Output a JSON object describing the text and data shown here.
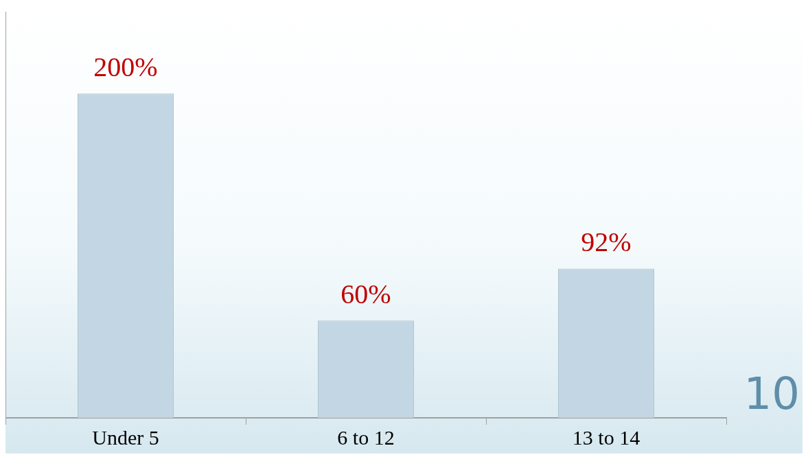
{
  "chart_data": {
    "type": "bar",
    "categories": [
      "Under 5",
      "6 to 12",
      "13 to 14"
    ],
    "values": [
      200,
      60,
      92
    ],
    "value_labels": [
      "200%",
      "60%",
      "92%"
    ],
    "color": "#c2d6e3",
    "grid": false,
    "legend": false,
    "annotations": [
      "10"
    ]
  }
}
